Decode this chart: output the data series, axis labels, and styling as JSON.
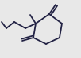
{
  "bg_color": "#e8e8e8",
  "line_color": "#222244",
  "line_width": 1.3,
  "figsize": [
    1.02,
    0.74
  ],
  "dpi": 100,
  "xlim": [
    0,
    102
  ],
  "ylim": [
    0,
    74
  ],
  "ring_verts": [
    [
      62,
      18
    ],
    [
      78,
      30
    ],
    [
      75,
      48
    ],
    [
      58,
      56
    ],
    [
      42,
      48
    ],
    [
      45,
      30
    ]
  ],
  "c1_idx": 0,
  "c2_idx": 5,
  "c3_idx": 4,
  "o1": [
    70,
    6
  ],
  "o3": [
    28,
    52
  ],
  "methyl": [
    38,
    19
  ],
  "butyl": [
    [
      32,
      36
    ],
    [
      18,
      28
    ],
    [
      8,
      36
    ],
    [
      2,
      28
    ]
  ]
}
